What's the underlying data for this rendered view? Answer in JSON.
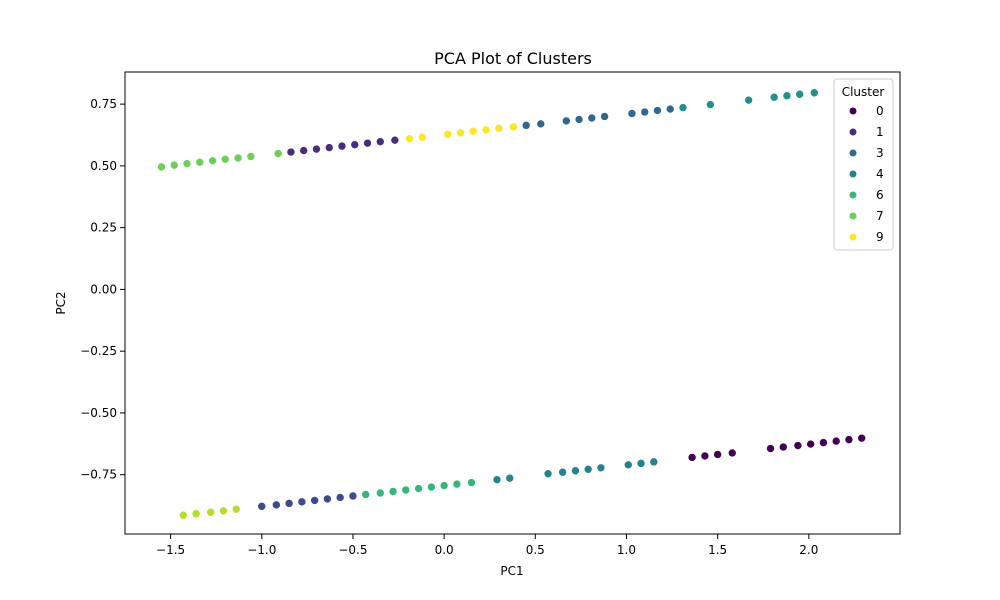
{
  "chart_data": {
    "type": "scatter",
    "title": "PCA Plot of Clusters",
    "xlabel": "PC1",
    "ylabel": "PC2",
    "xlim": [
      -1.75,
      2.5
    ],
    "ylim": [
      -0.99,
      0.88
    ],
    "xticks": [
      -1.5,
      -1.0,
      -0.5,
      0.0,
      0.5,
      1.0,
      1.5,
      2.0
    ],
    "xtick_labels": [
      "−1.5",
      "−1.0",
      "−0.5",
      "0.0",
      "0.5",
      "1.0",
      "1.5",
      "2.0"
    ],
    "yticks": [
      -0.75,
      -0.5,
      -0.25,
      0.0,
      0.25,
      0.5,
      0.75
    ],
    "ytick_labels": [
      "−0.75",
      "−0.50",
      "−0.25",
      "0.00",
      "0.25",
      "0.50",
      "0.75"
    ],
    "grid": false,
    "legend": {
      "title": "Cluster",
      "placement": "top-right",
      "entries": [
        {
          "label": "0",
          "color": "#440154"
        },
        {
          "label": "1",
          "color": "#472d7b"
        },
        {
          "label": "3",
          "color": "#31688e"
        },
        {
          "label": "4",
          "color": "#25838e"
        },
        {
          "label": "6",
          "color": "#35b779"
        },
        {
          "label": "7",
          "color": "#6ece58"
        },
        {
          "label": "9",
          "color": "#fde725"
        }
      ]
    },
    "series": [
      {
        "color": "#6ece58",
        "x": [
          -1.55,
          -1.48,
          -1.41,
          -1.34,
          -1.27,
          -1.2,
          -1.13,
          -1.06,
          -0.91
        ],
        "y": [
          0.496,
          0.503,
          0.509,
          0.515,
          0.521,
          0.527,
          0.532,
          0.538,
          0.55
        ]
      },
      {
        "color": "#472d7b",
        "x": [
          -0.84,
          -0.77,
          -0.7,
          -0.63,
          -0.56,
          -0.49,
          -0.42,
          -0.35,
          -0.27
        ],
        "y": [
          0.556,
          0.562,
          0.568,
          0.574,
          0.58,
          0.586,
          0.592,
          0.598,
          0.604
        ]
      },
      {
        "color": "#fde725",
        "x": [
          -0.19,
          -0.12,
          0.02,
          0.09,
          0.16,
          0.23,
          0.3,
          0.38
        ],
        "y": [
          0.61,
          0.616,
          0.628,
          0.634,
          0.64,
          0.646,
          0.652,
          0.658
        ]
      },
      {
        "color": "#31688e",
        "x": [
          0.45,
          0.53,
          0.67,
          0.74,
          0.81,
          0.88,
          1.03,
          1.1,
          1.17,
          1.24
        ],
        "y": [
          0.664,
          0.67,
          0.682,
          0.688,
          0.694,
          0.7,
          0.712,
          0.718,
          0.724,
          0.73
        ]
      },
      {
        "color": "#21918c",
        "x": [
          1.31,
          1.46,
          1.67,
          1.81,
          1.88,
          1.95,
          2.03
        ],
        "y": [
          0.736,
          0.748,
          0.766,
          0.778,
          0.784,
          0.79,
          0.796
        ]
      },
      {
        "color": "#440154",
        "x": [
          1.36,
          1.43,
          1.5,
          1.58,
          1.79,
          1.86,
          1.94,
          2.01,
          2.08,
          2.15,
          2.22,
          2.29
        ],
        "y": [
          -0.68,
          -0.674,
          -0.668,
          -0.662,
          -0.644,
          -0.638,
          -0.632,
          -0.626,
          -0.62,
          -0.614,
          -0.608,
          -0.602
        ]
      },
      {
        "color": "#25838e",
        "x": [
          0.29,
          0.36,
          0.57,
          0.65,
          0.72,
          0.79,
          0.86,
          1.01,
          1.08,
          1.15
        ],
        "y": [
          -0.77,
          -0.764,
          -0.746,
          -0.74,
          -0.734,
          -0.728,
          -0.722,
          -0.71,
          -0.704,
          -0.698
        ]
      },
      {
        "color": "#35b779",
        "x": [
          -0.43,
          -0.35,
          -0.28,
          -0.21,
          -0.14,
          -0.07,
          0.0,
          0.07,
          0.15
        ],
        "y": [
          -0.83,
          -0.824,
          -0.818,
          -0.812,
          -0.806,
          -0.8,
          -0.794,
          -0.788,
          -0.782
        ]
      },
      {
        "color": "#3e4a89",
        "x": [
          -1.0,
          -0.92,
          -0.85,
          -0.78,
          -0.71,
          -0.64,
          -0.57,
          -0.5
        ],
        "y": [
          -0.878,
          -0.872,
          -0.866,
          -0.86,
          -0.854,
          -0.848,
          -0.842,
          -0.836
        ]
      },
      {
        "color": "#b5de2b",
        "x": [
          -1.43,
          -1.36,
          -1.28,
          -1.21,
          -1.14
        ],
        "y": [
          -0.914,
          -0.908,
          -0.902,
          -0.896,
          -0.89
        ]
      }
    ]
  }
}
